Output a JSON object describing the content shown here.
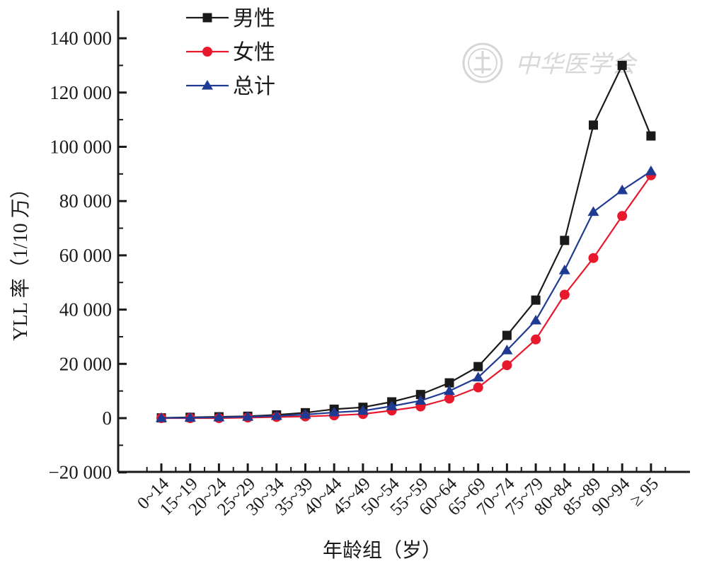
{
  "chart_data": {
    "type": "line",
    "xlabel": "年龄组（岁）",
    "ylabel": "YLL 率（1/10 万）",
    "ylim": [
      -20000,
      150000
    ],
    "yticks": [
      -20000,
      0,
      20000,
      40000,
      60000,
      80000,
      100000,
      120000,
      140000
    ],
    "ytick_labels": [
      "−20 000",
      "0",
      "20 000",
      "40 000",
      "60 000",
      "80 000",
      "100 000",
      "120 000",
      "140 000"
    ],
    "categories": [
      "0~14",
      "15~19",
      "20~24",
      "25~29",
      "30~34",
      "35~39",
      "40~44",
      "45~49",
      "50~54",
      "55~59",
      "60~64",
      "65~69",
      "70~74",
      "75~79",
      "80~84",
      "85~89",
      "90~94",
      "≥ 95"
    ],
    "series": [
      {
        "name": "男性",
        "color": "#1a1a1a",
        "marker": "square",
        "values": [
          100,
          300,
          500,
          700,
          1200,
          2000,
          3300,
          4000,
          6000,
          8700,
          13000,
          19000,
          30500,
          43500,
          65500,
          108000,
          130000,
          104000
        ]
      },
      {
        "name": "女性",
        "color": "#e8192c",
        "marker": "circle",
        "values": [
          0,
          0,
          0,
          200,
          400,
          600,
          1000,
          1500,
          2800,
          4300,
          7200,
          11300,
          19500,
          29000,
          45500,
          59000,
          74500,
          89500
        ]
      },
      {
        "name": "总计",
        "color": "#1f3a93",
        "marker": "triangle",
        "values": [
          50,
          150,
          300,
          500,
          800,
          1300,
          2100,
          2700,
          4400,
          6400,
          10000,
          15000,
          25000,
          36000,
          54500,
          76000,
          84000,
          91000
        ]
      }
    ],
    "legend_position": "top-left",
    "grid": false
  },
  "watermark": {
    "text": "中华医学会"
  }
}
